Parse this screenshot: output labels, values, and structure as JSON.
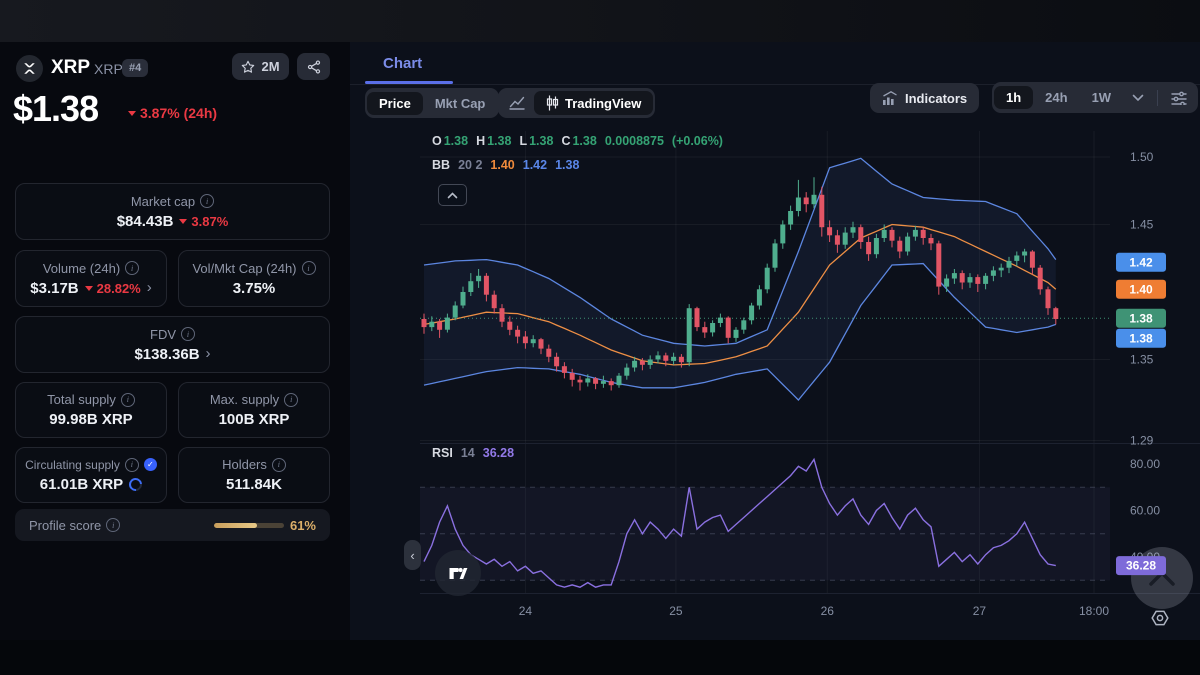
{
  "header": {
    "coin_name": "XRP",
    "coin_ticker": "XRP",
    "rank": "#4",
    "watchlist_count": "2M",
    "price": "$1.38",
    "change_pct": "3.87% (24h)"
  },
  "stats": {
    "market_cap": {
      "label": "Market cap",
      "value": "$84.43B",
      "change": "3.87%"
    },
    "volume": {
      "label": "Volume (24h)",
      "value": "$3.17B",
      "change": "28.82%"
    },
    "vol_mkt_cap": {
      "label": "Vol/Mkt Cap (24h)",
      "value": "3.75%"
    },
    "fdv": {
      "label": "FDV",
      "value": "$138.36B"
    },
    "total_supply": {
      "label": "Total supply",
      "value": "99.98B XRP"
    },
    "max_supply": {
      "label": "Max. supply",
      "value": "100B XRP"
    },
    "circulating_supply": {
      "label": "Circulating supply",
      "value": "61.01B XRP"
    },
    "holders": {
      "label": "Holders",
      "value": "511.84K"
    },
    "profile_score": {
      "label": "Profile score",
      "value": "61%",
      "percent": 61
    }
  },
  "chart_header": {
    "tab_label": "Chart",
    "price_label": "Price",
    "mktcap_label": "Mkt Cap",
    "tradingview_label": "TradingView",
    "indicators_label": "Indicators",
    "timeframes": [
      "1h",
      "24h",
      "1W"
    ],
    "selected_timeframe": "1h"
  },
  "legend": {
    "ohlc": {
      "o_label": "O",
      "o": "1.38",
      "h_label": "H",
      "h": "1.38",
      "l_label": "L",
      "l": "1.38",
      "c_label": "C",
      "c": "1.38",
      "change_abs": "0.0008875",
      "change_pct": "(+0.06%)"
    },
    "bb": {
      "label": "BB",
      "params": "20 2",
      "basis": "1.40",
      "upper": "1.42",
      "lower": "1.38"
    },
    "rsi": {
      "label": "RSI",
      "period": "14",
      "value": "36.28"
    }
  },
  "colors": {
    "accent_blue": "#5a6fe8",
    "red": "#ea3943",
    "gold": "#ddb06a",
    "up": "#4fae8e",
    "down": "#e25565",
    "bb_band": "#5c86e0",
    "bb_basis": "#ee8f45",
    "bb_fill": "rgba(84,120,214,0.09)",
    "rsi": "#8a70e0",
    "rsi_fill": "rgba(131,122,214,0.06)",
    "badge_blue": "#4a8fea",
    "badge_orange": "#ef7d33",
    "badge_green": "#3f9375",
    "badge_rsi": "#7e6bd9",
    "axis_text": "#868fa3",
    "grid": "rgba(255,255,255,0.05)",
    "last_line": "#3f9375"
  },
  "chart_data": {
    "type": "candlestick",
    "title": "XRP/USD 1h candles with Bollinger Bands (20,2) and RSI 14",
    "price_pane": {
      "candles": [
        [
          1.38,
          1.384,
          1.369,
          1.374
        ],
        [
          1.374,
          1.382,
          1.371,
          1.378
        ],
        [
          1.378,
          1.38,
          1.366,
          1.372
        ],
        [
          1.372,
          1.384,
          1.37,
          1.381
        ],
        [
          1.381,
          1.393,
          1.379,
          1.39
        ],
        [
          1.39,
          1.404,
          1.388,
          1.4
        ],
        [
          1.4,
          1.414,
          1.397,
          1.408
        ],
        [
          1.408,
          1.417,
          1.403,
          1.412
        ],
        [
          1.412,
          1.414,
          1.393,
          1.398
        ],
        [
          1.398,
          1.401,
          1.384,
          1.388
        ],
        [
          1.388,
          1.391,
          1.374,
          1.378
        ],
        [
          1.378,
          1.382,
          1.368,
          1.372
        ],
        [
          1.372,
          1.375,
          1.362,
          1.367
        ],
        [
          1.367,
          1.371,
          1.358,
          1.362
        ],
        [
          1.362,
          1.368,
          1.359,
          1.365
        ],
        [
          1.365,
          1.366,
          1.354,
          1.358
        ],
        [
          1.358,
          1.361,
          1.348,
          1.352
        ],
        [
          1.352,
          1.355,
          1.341,
          1.345
        ],
        [
          1.345,
          1.348,
          1.336,
          1.34
        ],
        [
          1.34,
          1.343,
          1.33,
          1.335
        ],
        [
          1.335,
          1.338,
          1.327,
          1.333
        ],
        [
          1.333,
          1.339,
          1.33,
          1.336
        ],
        [
          1.336,
          1.337,
          1.328,
          1.332
        ],
        [
          1.332,
          1.338,
          1.329,
          1.334
        ],
        [
          1.334,
          1.336,
          1.327,
          1.331
        ],
        [
          1.331,
          1.34,
          1.329,
          1.338
        ],
        [
          1.338,
          1.347,
          1.335,
          1.344
        ],
        [
          1.344,
          1.352,
          1.341,
          1.349
        ],
        [
          1.349,
          1.351,
          1.342,
          1.346
        ],
        [
          1.346,
          1.353,
          1.343,
          1.35
        ],
        [
          1.35,
          1.356,
          1.347,
          1.353
        ],
        [
          1.353,
          1.355,
          1.345,
          1.349
        ],
        [
          1.349,
          1.355,
          1.346,
          1.352
        ],
        [
          1.352,
          1.354,
          1.344,
          1.348
        ],
        [
          1.348,
          1.391,
          1.345,
          1.388
        ],
        [
          1.388,
          1.389,
          1.371,
          1.374
        ],
        [
          1.374,
          1.378,
          1.366,
          1.37
        ],
        [
          1.37,
          1.379,
          1.367,
          1.377
        ],
        [
          1.377,
          1.384,
          1.374,
          1.381
        ],
        [
          1.381,
          1.382,
          1.362,
          1.366
        ],
        [
          1.366,
          1.374,
          1.363,
          1.372
        ],
        [
          1.372,
          1.381,
          1.369,
          1.379
        ],
        [
          1.379,
          1.392,
          1.376,
          1.39
        ],
        [
          1.39,
          1.405,
          1.387,
          1.402
        ],
        [
          1.402,
          1.421,
          1.399,
          1.418
        ],
        [
          1.418,
          1.439,
          1.415,
          1.436
        ],
        [
          1.436,
          1.453,
          1.432,
          1.45
        ],
        [
          1.45,
          1.464,
          1.446,
          1.46
        ],
        [
          1.46,
          1.483,
          1.456,
          1.47
        ],
        [
          1.47,
          1.474,
          1.459,
          1.465
        ],
        [
          1.465,
          1.485,
          1.462,
          1.472
        ],
        [
          1.472,
          1.478,
          1.441,
          1.448
        ],
        [
          1.448,
          1.453,
          1.437,
          1.442
        ],
        [
          1.442,
          1.446,
          1.429,
          1.435
        ],
        [
          1.435,
          1.448,
          1.432,
          1.444
        ],
        [
          1.444,
          1.452,
          1.44,
          1.448
        ],
        [
          1.448,
          1.45,
          1.432,
          1.437
        ],
        [
          1.437,
          1.441,
          1.423,
          1.428
        ],
        [
          1.428,
          1.443,
          1.425,
          1.44
        ],
        [
          1.44,
          1.45,
          1.437,
          1.446
        ],
        [
          1.446,
          1.448,
          1.433,
          1.438
        ],
        [
          1.438,
          1.441,
          1.425,
          1.43
        ],
        [
          1.43,
          1.444,
          1.427,
          1.441
        ],
        [
          1.441,
          1.449,
          1.438,
          1.446
        ],
        [
          1.446,
          1.448,
          1.435,
          1.44
        ],
        [
          1.44,
          1.443,
          1.431,
          1.436
        ],
        [
          1.436,
          1.438,
          1.398,
          1.404
        ],
        [
          1.404,
          1.413,
          1.4,
          1.41
        ],
        [
          1.41,
          1.417,
          1.406,
          1.414
        ],
        [
          1.414,
          1.416,
          1.402,
          1.407
        ],
        [
          1.407,
          1.414,
          1.403,
          1.411
        ],
        [
          1.411,
          1.413,
          1.4,
          1.406
        ],
        [
          1.406,
          1.414,
          1.402,
          1.412
        ],
        [
          1.412,
          1.419,
          1.408,
          1.416
        ],
        [
          1.416,
          1.421,
          1.411,
          1.418
        ],
        [
          1.418,
          1.426,
          1.414,
          1.423
        ],
        [
          1.423,
          1.43,
          1.419,
          1.427
        ],
        [
          1.427,
          1.432,
          1.422,
          1.43
        ],
        [
          1.43,
          1.431,
          1.413,
          1.418
        ],
        [
          1.418,
          1.42,
          1.398,
          1.402
        ],
        [
          1.402,
          1.404,
          1.383,
          1.388
        ],
        [
          1.388,
          1.389,
          1.376,
          1.38
        ]
      ],
      "bb_index": [
        0,
        4,
        8,
        12,
        16,
        20,
        24,
        28,
        32,
        36,
        40,
        44,
        48,
        52,
        56,
        60,
        64,
        68,
        72,
        76,
        80,
        81
      ],
      "bb_upper": [
        1.42,
        1.423,
        1.424,
        1.42,
        1.41,
        1.396,
        1.38,
        1.368,
        1.362,
        1.36,
        1.362,
        1.372,
        1.43,
        1.492,
        1.499,
        1.48,
        1.47,
        1.468,
        1.467,
        1.458,
        1.432,
        1.424
      ],
      "bb_basis": [
        1.376,
        1.38,
        1.385,
        1.384,
        1.378,
        1.368,
        1.357,
        1.349,
        1.346,
        1.347,
        1.352,
        1.36,
        1.385,
        1.42,
        1.44,
        1.45,
        1.448,
        1.441,
        1.43,
        1.419,
        1.407,
        1.402
      ],
      "bb_lower": [
        1.331,
        1.336,
        1.341,
        1.344,
        1.343,
        1.339,
        1.333,
        1.329,
        1.329,
        1.333,
        1.339,
        1.343,
        1.32,
        1.348,
        1.39,
        1.42,
        1.421,
        1.396,
        1.374,
        1.37,
        1.374,
        1.376
      ],
      "last_price": 1.3805,
      "axis_ticks": [
        "1.50",
        "1.45",
        "1.35",
        "1.29"
      ],
      "badges": [
        {
          "text": "1.42",
          "price": 1.422,
          "color": "badge_blue"
        },
        {
          "text": "1.40",
          "price": 1.402,
          "color": "badge_orange"
        },
        {
          "text": "1.38",
          "price": 1.3805,
          "color": "badge_green"
        },
        {
          "text": "1.38",
          "price": 1.376,
          "color": "badge_blue"
        }
      ]
    },
    "rsi_pane": {
      "series": [
        38,
        45,
        55,
        62,
        52,
        45,
        41,
        39,
        37,
        39,
        36,
        38,
        34,
        36,
        33,
        34,
        31,
        28,
        27,
        28,
        27,
        29,
        27,
        28,
        28,
        38,
        50,
        56,
        50,
        55,
        52,
        48,
        52,
        49,
        70,
        52,
        55,
        57,
        58,
        51,
        54,
        57,
        60,
        63,
        66,
        69,
        72,
        75,
        79,
        77,
        82,
        70,
        63,
        58,
        62,
        65,
        58,
        54,
        60,
        63,
        57,
        52,
        58,
        61,
        56,
        53,
        36,
        39,
        42,
        38,
        41,
        37,
        41,
        44,
        45,
        47,
        50,
        55,
        48,
        41,
        37,
        36.28
      ],
      "levels": [
        70,
        50,
        30
      ],
      "axis_ticks": [
        {
          "text": "80.00",
          "v": 80
        },
        {
          "text": "60.00",
          "v": 60
        },
        {
          "text": "40.00",
          "v": 40
        }
      ],
      "badge": {
        "text": "36.28",
        "v": 36.28
      }
    },
    "time_axis": {
      "labels": [
        {
          "text": "24",
          "i": 13
        },
        {
          "text": "25",
          "i": 32.3
        },
        {
          "text": "26",
          "i": 51.7
        },
        {
          "text": "27",
          "i": 71.2
        },
        {
          "text": "18:00",
          "i": 85.9
        }
      ]
    }
  }
}
